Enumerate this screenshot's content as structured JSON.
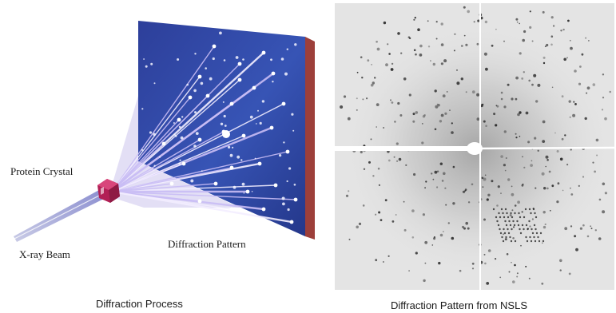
{
  "labels": {
    "protein_crystal": "Protein Crystal",
    "xray_beam": "X-ray Beam",
    "diffraction_pattern": "Diffraction Pattern"
  },
  "captions": {
    "left": "Diffraction Process",
    "right": "Diffraction Pattern from NSLS"
  },
  "colors": {
    "detector_blue": "#2f49a6",
    "detector_edge": "#a8413f",
    "crystal": "#b5245a",
    "ray": "#e6dcff",
    "film_gray": "#e3e3e3",
    "spot": "#2a2a2a"
  }
}
